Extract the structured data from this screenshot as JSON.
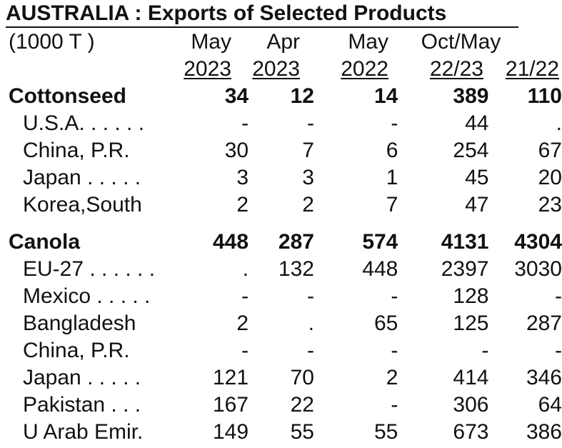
{
  "title": "AUSTRALIA :  Exports of Selected Products",
  "units": "(1000 T )",
  "headers": {
    "col1_top": "May",
    "col1_bottom": "2023",
    "col2_top": "Apr",
    "col2_bottom": "2023",
    "col3_top": "May",
    "col3_bottom": "2022",
    "span_top": "Oct/May",
    "col4_bottom": "22/23",
    "col5_bottom": "21/22"
  },
  "groups": [
    {
      "name": "Cottonseed",
      "values": [
        "34",
        "12",
        "14",
        "389",
        "110"
      ],
      "rows": [
        {
          "label": "U.S.A. . . . . .",
          "values": [
            "-",
            "-",
            "-",
            "44",
            "."
          ]
        },
        {
          "label": "China, P.R.",
          "values": [
            "30",
            "7",
            "6",
            "254",
            "67"
          ]
        },
        {
          "label": "Japan . . . . .",
          "values": [
            "3",
            "3",
            "1",
            "45",
            "20"
          ]
        },
        {
          "label": "Korea,South",
          "values": [
            "2",
            "2",
            "7",
            "47",
            "23"
          ]
        }
      ]
    },
    {
      "name": "Canola",
      "values": [
        "448",
        "287",
        "574",
        "4131",
        "4304"
      ],
      "rows": [
        {
          "label": "EU-27 . . . . . .",
          "values": [
            ".",
            "132",
            "448",
            "2397",
            "3030"
          ]
        },
        {
          "label": "Mexico . . . . .",
          "values": [
            "-",
            "-",
            "-",
            "128",
            "-"
          ]
        },
        {
          "label": "Bangladesh",
          "values": [
            "2",
            ".",
            "65",
            "125",
            "287"
          ]
        },
        {
          "label": "China, P.R.",
          "values": [
            "-",
            "-",
            "-",
            "-",
            "-"
          ]
        },
        {
          "label": "Japan . . . . .",
          "values": [
            "121",
            "70",
            "2",
            "414",
            "346"
          ]
        },
        {
          "label": "Pakistan . . .",
          "values": [
            "167",
            "22",
            "-",
            "306",
            "64"
          ]
        },
        {
          "label": "U Arab Emir.",
          "values": [
            "149",
            "55",
            "55",
            "673",
            "386"
          ]
        }
      ]
    }
  ]
}
